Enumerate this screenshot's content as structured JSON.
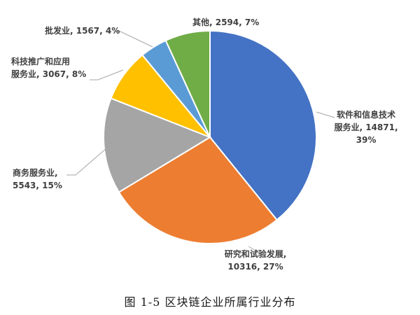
{
  "chart_data": {
    "type": "pie",
    "slices": [
      {
        "label_lines": [
          "软件和信息技术",
          "服务业, 14871,",
          "39%"
        ],
        "value": 14871,
        "percent": 39,
        "color": "#4472c4"
      },
      {
        "label_lines": [
          "研究和试验发展,",
          "10316, 27%"
        ],
        "value": 10316,
        "percent": 27,
        "color": "#ed7d31"
      },
      {
        "label_lines": [
          "商务服务业,",
          "5543, 15%"
        ],
        "value": 5543,
        "percent": 15,
        "color": "#a5a5a5"
      },
      {
        "label_lines": [
          "科技推广和应用",
          "服务业, 3067, 8%"
        ],
        "value": 3067,
        "percent": 8,
        "color": "#ffc000"
      },
      {
        "label_lines": [
          "批发业, 1567, 4%"
        ],
        "value": 1567,
        "percent": 4,
        "color": "#5b9bd5"
      },
      {
        "label_lines": [
          "其他, 2594, 7%"
        ],
        "value": 2594,
        "percent": 7,
        "color": "#70ad47"
      }
    ]
  },
  "caption": "图 1-5 区块链企业所属行业分布"
}
